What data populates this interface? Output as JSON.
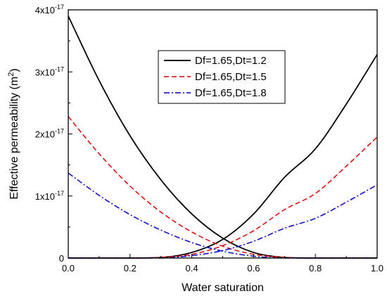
{
  "chart_data": {
    "type": "line",
    "xlabel": "Water saturation",
    "ylabel": "Effective permeability (m",
    "ylabel_sup": "2",
    "ylabel_end": ")",
    "xlim": [
      0.0,
      1.0
    ],
    "ylim": [
      0,
      4e-17
    ],
    "x_ticks": [
      0.0,
      0.2,
      0.4,
      0.6,
      0.8,
      1.0
    ],
    "x_tick_labels": [
      "0.0",
      "0.2",
      "0.4",
      "0.6",
      "0.8",
      "1.0"
    ],
    "y_ticks": [
      {
        "value": 0,
        "label": "0",
        "exp": ""
      },
      {
        "value": 1e-17,
        "label": "1x10",
        "exp": "-17"
      },
      {
        "value": 2e-17,
        "label": "2x10",
        "exp": "-17"
      },
      {
        "value": 3e-17,
        "label": "3x10",
        "exp": "-17"
      },
      {
        "value": 4e-17,
        "label": "4x10",
        "exp": "-17"
      }
    ],
    "grid": false,
    "legend_position": "top-right",
    "x": [
      0.0,
      0.1,
      0.2,
      0.3,
      0.4,
      0.5,
      0.6,
      0.7,
      0.8,
      0.9,
      1.0
    ],
    "series": [
      {
        "name": "Df=1.65,Dt=1.2",
        "color": "#000000",
        "style": "solid",
        "legend": true,
        "values": [
          3.9e-17,
          2.86e-17,
          1.97e-17,
          1.26e-17,
          7.1e-18,
          3.2e-18,
          9e-19,
          1e-19,
          0.0,
          0.0,
          0.0
        ]
      },
      {
        "name": "Df=1.65,Dt=1.2",
        "color": "#000000",
        "style": "solid",
        "legend": false,
        "values": [
          0.0,
          0.0,
          0.0,
          1e-19,
          9e-19,
          3e-18,
          7.1e-18,
          1.3e-17,
          1.76e-17,
          2.48e-17,
          3.28e-17
        ]
      },
      {
        "name": "Df=1.65,Dt=1.5",
        "color": "#e00000",
        "style": "dashed",
        "legend": true,
        "values": [
          2.28e-17,
          1.68e-17,
          1.16e-17,
          7.4e-18,
          4.2e-18,
          1.9e-18,
          6e-19,
          1e-19,
          0.0,
          0.0,
          0.0
        ]
      },
      {
        "name": "Df=1.65,Dt=1.5",
        "color": "#e00000",
        "style": "dashed",
        "legend": false,
        "values": [
          0.0,
          0.0,
          0.0,
          1e-19,
          6e-19,
          2e-18,
          4.4e-18,
          7.8e-18,
          1.04e-17,
          1.48e-17,
          1.95e-17
        ]
      },
      {
        "name": "Df=1.65,Dt=1.8",
        "color": "#0000cc",
        "style": "dashdot",
        "legend": true,
        "values": [
          1.37e-17,
          1.01e-17,
          7e-18,
          4.5e-18,
          2.5e-18,
          1.1e-18,
          3e-19,
          0.0,
          0.0,
          0.0,
          0.0
        ]
      },
      {
        "name": "Df=1.65,Dt=1.8",
        "color": "#0000cc",
        "style": "dashdot",
        "legend": false,
        "values": [
          0.0,
          0.0,
          0.0,
          0.0,
          4e-19,
          1.2e-18,
          2.7e-18,
          4.8e-18,
          6.4e-18,
          9e-18,
          1.18e-17
        ]
      }
    ]
  }
}
